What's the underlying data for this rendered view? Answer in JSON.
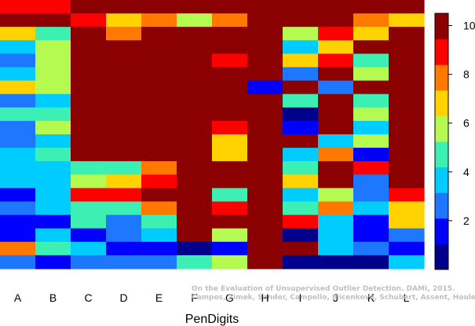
{
  "chart_data": {
    "type": "heatmap",
    "title": "",
    "xlabel": "PenDigits",
    "ylabel": "",
    "columns": [
      "A",
      "B",
      "C",
      "D",
      "E",
      "F",
      "G",
      "H",
      "I",
      "J",
      "K",
      "L"
    ],
    "value_range": [
      0,
      10.5
    ],
    "colorbar_ticks": [
      2,
      4,
      6,
      8,
      10
    ],
    "colormap": [
      "#00008B",
      "#0000FF",
      "#1E78FF",
      "#00CCFF",
      "#3CF0B4",
      "#B4FA50",
      "#FFD200",
      "#FF7800",
      "#FF0000",
      "#8B0000"
    ],
    "grid": false,
    "legend": "right",
    "rows": [
      [
        8.5,
        8.5,
        10,
        10,
        10,
        10,
        10,
        10,
        10,
        10,
        10,
        10
      ],
      [
        10,
        10,
        8.5,
        6.5,
        7.5,
        5.8,
        7.5,
        10,
        10,
        10,
        7.5,
        6.5
      ],
      [
        6.5,
        5,
        10,
        7.5,
        10,
        10,
        10,
        10,
        5.8,
        8.5,
        6.5,
        10
      ],
      [
        4,
        5.8,
        10,
        10,
        10,
        10,
        10,
        10,
        4,
        6.5,
        10,
        10
      ],
      [
        3,
        5.8,
        10,
        10,
        10,
        10,
        8.5,
        10,
        6.5,
        8.5,
        5,
        10
      ],
      [
        4,
        5.8,
        10,
        10,
        10,
        10,
        10,
        10,
        3,
        10,
        5.8,
        10
      ],
      [
        6.5,
        5.8,
        10,
        10,
        10,
        10,
        10,
        2,
        10,
        3,
        10,
        10
      ],
      [
        3,
        4,
        10,
        10,
        10,
        10,
        10,
        10,
        5,
        10,
        5,
        10
      ],
      [
        5,
        5,
        10,
        10,
        10,
        10,
        10,
        10,
        1,
        10,
        5.8,
        10
      ],
      [
        3,
        5.8,
        10,
        10,
        10,
        10,
        8.5,
        10,
        2,
        10,
        4,
        10
      ],
      [
        3,
        4,
        10,
        10,
        10,
        10,
        6.5,
        10,
        10,
        4,
        5.8,
        10
      ],
      [
        4,
        5,
        10,
        10,
        10,
        10,
        6.5,
        10,
        4,
        7.5,
        2,
        10
      ],
      [
        4,
        4,
        5,
        5,
        7.5,
        10,
        10,
        10,
        5,
        10,
        8.5,
        10
      ],
      [
        4,
        4,
        5.8,
        6.5,
        8.5,
        10,
        10,
        10,
        6.5,
        10,
        3,
        10
      ],
      [
        2,
        4,
        8.5,
        8.5,
        10,
        10,
        5,
        10,
        4,
        5.8,
        3,
        8.5
      ],
      [
        3,
        4,
        5,
        5,
        7.5,
        10,
        8.5,
        10,
        5,
        7.5,
        4,
        6.5
      ],
      [
        2,
        2,
        5,
        3,
        5,
        10,
        10,
        10,
        8.5,
        4,
        2,
        6.5
      ],
      [
        2,
        4,
        2,
        3,
        4,
        10,
        5.8,
        10,
        1,
        4,
        2,
        3
      ],
      [
        7.5,
        5,
        4,
        2,
        2,
        1,
        2,
        10,
        10,
        4,
        3,
        2
      ],
      [
        3,
        2,
        3,
        3,
        3,
        5,
        5.8,
        10,
        1,
        1,
        1,
        4
      ]
    ],
    "row_colors": [
      [
        "#FF0000",
        "#FF0000",
        "#8B0000",
        "#8B0000",
        "#8B0000",
        "#8B0000",
        "#8B0000",
        "#8B0000",
        "#8B0000",
        "#8B0000",
        "#8B0000",
        "#8B0000"
      ],
      [
        "#8B0000",
        "#8B0000",
        "#FF0000",
        "#FFD200",
        "#FF7800",
        "#B4FA50",
        "#FF7800",
        "#8B0000",
        "#8B0000",
        "#8B0000",
        "#FF7800",
        "#FFD200"
      ],
      [
        "#FFD200",
        "#3CF0B4",
        "#8B0000",
        "#FF7800",
        "#8B0000",
        "#8B0000",
        "#8B0000",
        "#8B0000",
        "#B4FA50",
        "#FF0000",
        "#FFD200",
        "#8B0000"
      ],
      [
        "#00CCFF",
        "#B4FA50",
        "#8B0000",
        "#8B0000",
        "#8B0000",
        "#8B0000",
        "#8B0000",
        "#8B0000",
        "#00CCFF",
        "#FFD200",
        "#8B0000",
        "#8B0000"
      ],
      [
        "#1E78FF",
        "#B4FA50",
        "#8B0000",
        "#8B0000",
        "#8B0000",
        "#8B0000",
        "#FF0000",
        "#8B0000",
        "#FFD200",
        "#FF0000",
        "#3CF0B4",
        "#8B0000"
      ],
      [
        "#00CCFF",
        "#B4FA50",
        "#8B0000",
        "#8B0000",
        "#8B0000",
        "#8B0000",
        "#8B0000",
        "#8B0000",
        "#1E78FF",
        "#8B0000",
        "#B4FA50",
        "#8B0000"
      ],
      [
        "#FFD200",
        "#B4FA50",
        "#8B0000",
        "#8B0000",
        "#8B0000",
        "#8B0000",
        "#8B0000",
        "#0000FF",
        "#8B0000",
        "#1E78FF",
        "#8B0000",
        "#8B0000"
      ],
      [
        "#1E78FF",
        "#00CCFF",
        "#8B0000",
        "#8B0000",
        "#8B0000",
        "#8B0000",
        "#8B0000",
        "#8B0000",
        "#3CF0B4",
        "#8B0000",
        "#3CF0B4",
        "#8B0000"
      ],
      [
        "#3CF0B4",
        "#3CF0B4",
        "#8B0000",
        "#8B0000",
        "#8B0000",
        "#8B0000",
        "#8B0000",
        "#8B0000",
        "#00008B",
        "#8B0000",
        "#B4FA50",
        "#8B0000"
      ],
      [
        "#1E78FF",
        "#B4FA50",
        "#8B0000",
        "#8B0000",
        "#8B0000",
        "#8B0000",
        "#FF0000",
        "#8B0000",
        "#0000FF",
        "#8B0000",
        "#00CCFF",
        "#8B0000"
      ],
      [
        "#1E78FF",
        "#00CCFF",
        "#8B0000",
        "#8B0000",
        "#8B0000",
        "#8B0000",
        "#FFD200",
        "#8B0000",
        "#8B0000",
        "#00CCFF",
        "#B4FA50",
        "#8B0000"
      ],
      [
        "#00CCFF",
        "#3CF0B4",
        "#8B0000",
        "#8B0000",
        "#8B0000",
        "#8B0000",
        "#FFD200",
        "#8B0000",
        "#00CCFF",
        "#FF7800",
        "#0000FF",
        "#8B0000"
      ],
      [
        "#00CCFF",
        "#00CCFF",
        "#3CF0B4",
        "#3CF0B4",
        "#FF7800",
        "#8B0000",
        "#8B0000",
        "#8B0000",
        "#3CF0B4",
        "#8B0000",
        "#FF0000",
        "#8B0000"
      ],
      [
        "#00CCFF",
        "#00CCFF",
        "#B4FA50",
        "#FFD200",
        "#FF0000",
        "#8B0000",
        "#8B0000",
        "#8B0000",
        "#FFD200",
        "#8B0000",
        "#1E78FF",
        "#8B0000"
      ],
      [
        "#0000FF",
        "#00CCFF",
        "#FF0000",
        "#FF0000",
        "#8B0000",
        "#8B0000",
        "#3CF0B4",
        "#8B0000",
        "#00CCFF",
        "#B4FA50",
        "#1E78FF",
        "#FF0000"
      ],
      [
        "#1E78FF",
        "#00CCFF",
        "#3CF0B4",
        "#3CF0B4",
        "#FF7800",
        "#8B0000",
        "#FF0000",
        "#8B0000",
        "#3CF0B4",
        "#FF7800",
        "#00CCFF",
        "#FFD200"
      ],
      [
        "#0000FF",
        "#0000FF",
        "#3CF0B4",
        "#1E78FF",
        "#3CF0B4",
        "#8B0000",
        "#8B0000",
        "#8B0000",
        "#FF0000",
        "#00CCFF",
        "#0000FF",
        "#FFD200"
      ],
      [
        "#0000FF",
        "#00CCFF",
        "#0000FF",
        "#1E78FF",
        "#00CCFF",
        "#8B0000",
        "#B4FA50",
        "#8B0000",
        "#00008B",
        "#00CCFF",
        "#0000FF",
        "#1E78FF"
      ],
      [
        "#FF7800",
        "#3CF0B4",
        "#00CCFF",
        "#0000FF",
        "#0000FF",
        "#00008B",
        "#0000FF",
        "#8B0000",
        "#8B0000",
        "#00CCFF",
        "#1E78FF",
        "#0000FF"
      ],
      [
        "#1E78FF",
        "#0000FF",
        "#1E78FF",
        "#1E78FF",
        "#1E78FF",
        "#3CF0B4",
        "#B4FA50",
        "#8B0000",
        "#00008B",
        "#00008B",
        "#00008B",
        "#00CCFF"
      ]
    ]
  },
  "watermark": {
    "line1": "On the Evaluation of Unsupervised Outlier Detection. DAMI, 2015.",
    "line2": "Campos, Zimek, Sander, Campello, Micenková, Schubert, Assent, Houle"
  }
}
